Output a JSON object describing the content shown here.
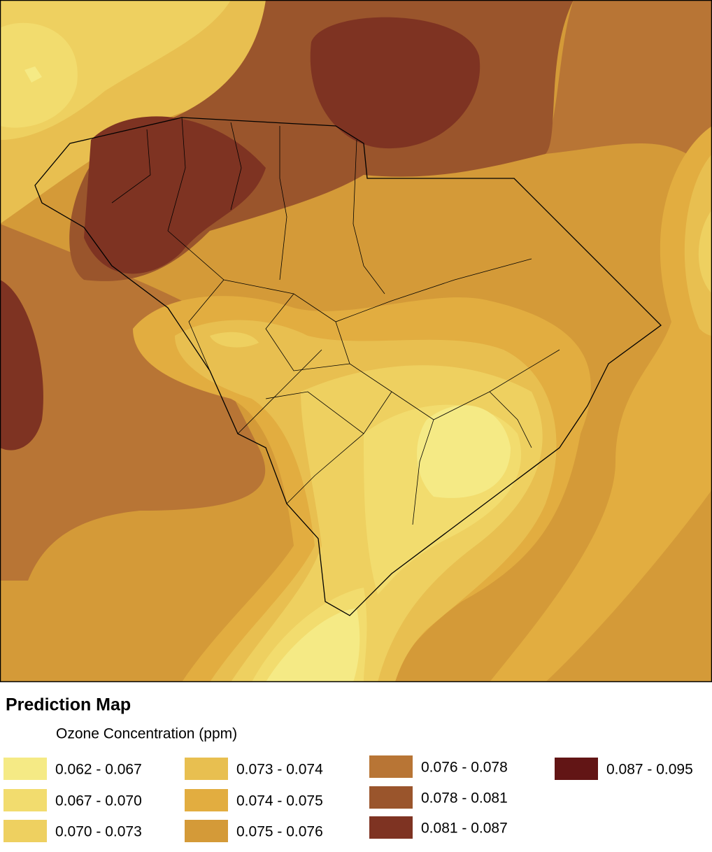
{
  "title": "Prediction Map",
  "subtitle": "Ozone Concentration (ppm)",
  "legend": {
    "items": [
      {
        "label": "0.062 - 0.067",
        "color": "#f5ea85"
      },
      {
        "label": "0.067 - 0.070",
        "color": "#f2dc6e"
      },
      {
        "label": "0.070 - 0.073",
        "color": "#eed060"
      },
      {
        "label": "0.073 - 0.074",
        "color": "#e8bf50"
      },
      {
        "label": "0.074 - 0.075",
        "color": "#e2ad40"
      },
      {
        "label": "0.075 - 0.076",
        "color": "#d49a38"
      },
      {
        "label": "0.076 - 0.078",
        "color": "#b87535"
      },
      {
        "label": "0.078 - 0.081",
        "color": "#9a552c"
      },
      {
        "label": "0.081 - 0.087",
        "color": "#7e3322"
      },
      {
        "label": "0.087 - 0.095",
        "color": "#621515"
      }
    ]
  }
}
